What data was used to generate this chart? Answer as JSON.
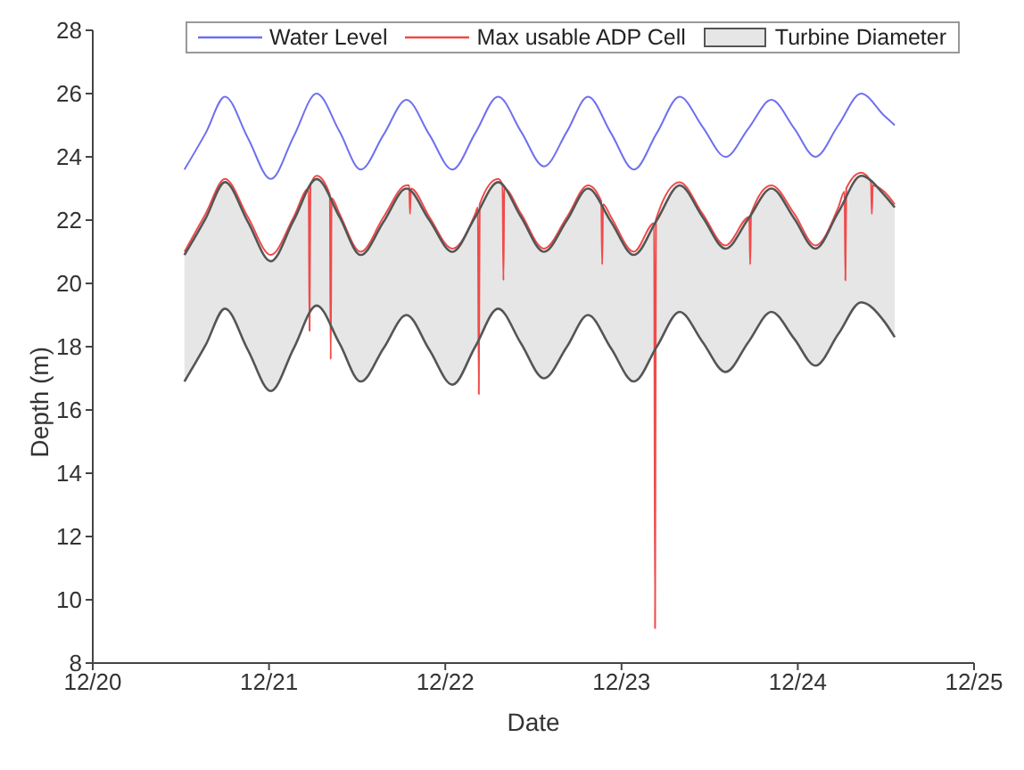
{
  "chart_data": {
    "type": "line",
    "xlabel": "Date",
    "ylabel": "Depth (m)",
    "xlim": [
      "--12-20",
      "--12-25"
    ],
    "xticks": [
      {
        "value": "--12-20",
        "label": "12/20"
      },
      {
        "value": "--12-21",
        "label": "12/21"
      },
      {
        "value": "--12-22",
        "label": "12/22"
      },
      {
        "value": "--12-23",
        "label": "12/23"
      },
      {
        "value": "--12-24",
        "label": "12/24"
      },
      {
        "value": "--12-25",
        "label": "12/25"
      }
    ],
    "ylim": [
      8,
      28
    ],
    "yticks": [
      8,
      10,
      12,
      14,
      16,
      18,
      20,
      22,
      24,
      26,
      28
    ],
    "legend": "top",
    "marker": "none",
    "line_style": "solid",
    "x": [
      "--12-20T12:29",
      "--12-20T15:22",
      "--12-20T18:00",
      "--12-20T21:07",
      "--12-21T00:14",
      "--12-21T03:22",
      "--12-21T06:29",
      "--12-21T09:36",
      "--12-21T12:29",
      "--12-21T15:36",
      "--12-21T18:43",
      "--12-21T21:50",
      "--12-22T00:58",
      "--12-22T04:05",
      "--12-22T07:12",
      "--12-22T10:19",
      "--12-22T13:26",
      "--12-22T16:34",
      "--12-22T19:26",
      "--12-22T22:34",
      "--12-23T01:41",
      "--12-23T04:48",
      "--12-23T07:55",
      "--12-23T11:02",
      "--12-23T14:10",
      "--12-23T17:17",
      "--12-23T20:24",
      "--12-23T23:31",
      "--12-24T02:24",
      "--12-24T05:31",
      "--12-24T08:38",
      "--12-24T11:46",
      "--12-24T13:12"
    ],
    "series": [
      {
        "name": "Water Level",
        "color": "#6f6ff0",
        "values": [
          23.6,
          24.75,
          25.9,
          24.6,
          23.3,
          24.65,
          26.0,
          24.8,
          23.6,
          24.7,
          25.8,
          24.7,
          23.6,
          24.75,
          25.9,
          24.8,
          23.7,
          24.8,
          25.9,
          24.75,
          23.6,
          24.75,
          25.9,
          24.95,
          24.0,
          24.9,
          25.8,
          24.9,
          24.0,
          25.0,
          26.0,
          25.3,
          25.0
        ]
      },
      {
        "name": "Max usable ADP Cell",
        "color": "#f04a4a",
        "x": [
          "--12-20T12:29",
          "--12-20T15:22",
          "--12-20T18:00",
          "--12-20T21:07",
          "--12-21T00:14",
          "--12-21T03:22",
          "--12-21T05:24",
          "--12-21T05:31",
          "--12-21T05:38",
          "--12-21T06:29",
          "--12-21T08:17",
          "--12-21T08:24",
          "--12-21T08:31",
          "--12-21T09:36",
          "--12-21T12:29",
          "--12-21T15:36",
          "--12-21T18:43",
          "--12-21T19:05",
          "--12-21T19:12",
          "--12-21T19:19",
          "--12-21T21:50",
          "--12-22T00:58",
          "--12-22T04:05",
          "--12-22T04:26",
          "--12-22T04:34",
          "--12-22T04:41",
          "--12-22T07:12",
          "--12-22T07:48",
          "--12-22T07:55",
          "--12-22T08:02",
          "--12-22T10:19",
          "--12-22T13:26",
          "--12-22T16:34",
          "--12-22T19:26",
          "--12-22T21:14",
          "--12-22T21:22",
          "--12-22T21:29",
          "--12-22T22:34",
          "--12-23T01:41",
          "--12-23T04:26",
          "--12-23T04:34",
          "--12-23T04:41",
          "--12-23T04:48",
          "--12-23T07:55",
          "--12-23T11:02",
          "--12-23T14:10",
          "--12-23T17:24",
          "--12-23T17:31",
          "--12-23T17:38",
          "--12-23T20:24",
          "--12-23T23:31",
          "--12-24T02:24",
          "--12-24T05:31",
          "--12-24T06:22",
          "--12-24T06:29",
          "--12-24T06:36",
          "--12-24T08:38",
          "--12-24T09:58",
          "--12-24T10:05",
          "--12-24T10:12",
          "--12-24T11:46",
          "--12-24T13:12"
        ],
        "values": [
          21.0,
          22.2,
          23.3,
          22.1,
          20.9,
          22.1,
          23.0,
          18.5,
          23.1,
          23.4,
          22.8,
          17.6,
          22.7,
          22.2,
          21.0,
          22.1,
          23.1,
          23.1,
          22.2,
          23.0,
          22.1,
          21.1,
          22.2,
          22.4,
          16.5,
          22.5,
          23.3,
          23.1,
          20.1,
          23.0,
          22.2,
          21.1,
          22.1,
          23.1,
          22.6,
          20.6,
          22.5,
          22.1,
          21.0,
          21.9,
          9.1,
          22.0,
          22.1,
          23.2,
          22.2,
          21.2,
          22.1,
          20.6,
          22.2,
          23.1,
          22.2,
          21.2,
          22.4,
          22.9,
          20.1,
          23.0,
          23.5,
          23.2,
          22.2,
          23.1,
          22.9,
          22.5
        ]
      },
      {
        "type": "line",
        "color": "#555555",
        "values": [
          16.9,
          18.05,
          19.2,
          17.9,
          16.6,
          17.95,
          19.3,
          18.1,
          16.9,
          17.95,
          19.0,
          17.9,
          16.8,
          18.0,
          19.2,
          18.1,
          17.0,
          18.0,
          19.0,
          17.95,
          16.9,
          18.0,
          19.1,
          18.15,
          17.2,
          18.15,
          19.1,
          18.25,
          17.4,
          18.4,
          19.4,
          18.8,
          18.3
        ]
      },
      {
        "name": "Turbine Diameter",
        "type": "area",
        "color": "#e6e6e6",
        "values": [
          20.9,
          22.05,
          23.2,
          21.95,
          20.7,
          22.0,
          23.3,
          22.1,
          20.9,
          21.95,
          23.0,
          22.0,
          21.0,
          22.1,
          23.2,
          22.1,
          21.0,
          22.0,
          23.0,
          21.95,
          20.9,
          22.0,
          23.1,
          22.1,
          21.1,
          22.05,
          23.0,
          22.05,
          21.1,
          22.25,
          23.4,
          22.8,
          22.4
        ]
      }
    ]
  }
}
